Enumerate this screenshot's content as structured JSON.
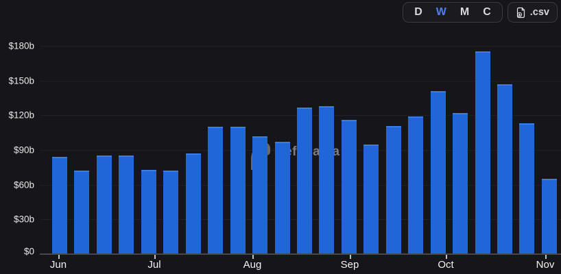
{
  "controls": {
    "range_buttons": [
      {
        "label": "D",
        "active": false
      },
      {
        "label": "W",
        "active": true
      },
      {
        "label": "M",
        "active": false
      },
      {
        "label": "C",
        "active": false
      }
    ],
    "csv_label": ".csv"
  },
  "watermark": {
    "text": "DefiLlama"
  },
  "colors": {
    "background": "#161519",
    "bar": "#2166d8",
    "bar_top_cap": "#3b7ce6",
    "active_range_button": "#4d7ef2",
    "gridline": "#222127",
    "axis_line": "#47474d",
    "label_text": "#e7e7e9",
    "watermark_text": "#8e8e92"
  },
  "chart_data": {
    "type": "bar",
    "title": "",
    "xlabel": "",
    "ylabel": "",
    "unit": "USD billions",
    "granularity": "weekly",
    "grid": "horizontal",
    "legend": "none",
    "ylim": [
      0,
      180
    ],
    "y_ticks": [
      {
        "label": "$0",
        "value": 0
      },
      {
        "label": "$30b",
        "value": 30
      },
      {
        "label": "$60b",
        "value": 60
      },
      {
        "label": "$90b",
        "value": 90
      },
      {
        "label": "$120b",
        "value": 120
      },
      {
        "label": "$150b",
        "value": 150
      },
      {
        "label": "$180b",
        "value": 180
      }
    ],
    "x_tick_labels": [
      "Jun",
      "Jul",
      "Aug",
      "Sep",
      "Oct",
      "Nov"
    ],
    "values": [
      84,
      72,
      85,
      85,
      73,
      72,
      87,
      110,
      110,
      102,
      97,
      127,
      128,
      116,
      95,
      111,
      119,
      141,
      122,
      175,
      147,
      113,
      65
    ]
  }
}
